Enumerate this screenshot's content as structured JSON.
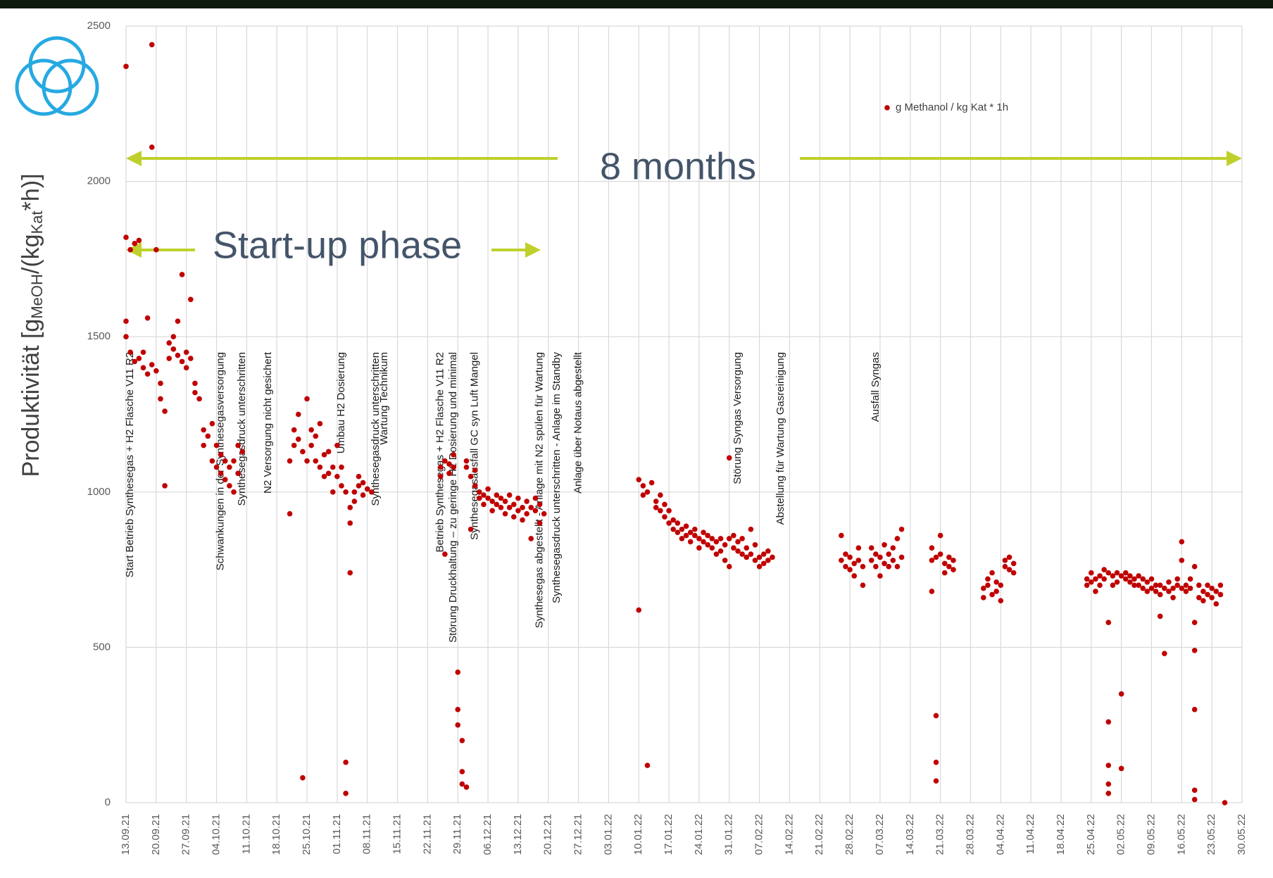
{
  "chart_data": {
    "type": "scatter",
    "y_label": [
      "Produktivität [g",
      "MeOH",
      "/(kg",
      "Kat",
      "*h)]"
    ],
    "ylim": [
      0,
      2500
    ],
    "yticks": [
      0,
      500,
      1000,
      1500,
      2000,
      2500
    ],
    "xlim": [
      "13.09.21",
      "30.05.22"
    ],
    "xticks": [
      "13.09.21",
      "20.09.21",
      "27.09.21",
      "04.10.21",
      "11.10.21",
      "18.10.21",
      "25.10.21",
      "01.11.21",
      "08.11.21",
      "15.11.21",
      "22.11.21",
      "29.11.21",
      "06.12.21",
      "13.12.21",
      "20.12.21",
      "27.12.21",
      "03.01.22",
      "10.01.22",
      "17.01.22",
      "24.01.22",
      "31.01.22",
      "07.02.22",
      "14.02.22",
      "21.02.22",
      "28.02.22",
      "07.03.22",
      "14.03.22",
      "21.03.22",
      "28.03.22",
      "04.04.22",
      "11.04.22",
      "18.04.22",
      "25.04.22",
      "02.05.22",
      "09.05.22",
      "16.05.22",
      "23.05.22",
      "30.05.22"
    ],
    "grid": true,
    "legend": "upper right",
    "arrow_labels": [
      "8 months",
      "Start-up phase"
    ],
    "annotations": [
      {
        "text": "Start Betrieb Synthesegas + H2 Flasche V11 R2",
        "x": "14.09.21"
      },
      {
        "text": "Schwankungen in der Synthesegasversorgung",
        "x": "05.10.21"
      },
      {
        "text": "Synthesegasdruck unterschritten",
        "x": "10.10.21"
      },
      {
        "text": "N2 Versorgung nicht gesichert",
        "x": "16.10.21"
      },
      {
        "text": "Umbau H2 Dosierung",
        "x": "02.11.21"
      },
      {
        "text": "Synthesegasdruck unterschritten",
        "x": "10.11.21"
      },
      {
        "text": "Wartung Technikum",
        "x": "12.11.21"
      },
      {
        "text": "Betrieb Synthesegas + H2 Flasche V11 R2",
        "x": "25.11.21"
      },
      {
        "text": "Störung Druckhaltung – zu geringe H2 Dosierung und minimal",
        "x": "28.11.21"
      },
      {
        "text": "Synthesegasausfall GC syn Luft Mangel",
        "x": "03.12.21"
      },
      {
        "text": "Synthesegas abgestellt - Anlage mit N2 spülen für Wartung",
        "x": "18.12.21"
      },
      {
        "text": "Synthesegasdruck unterschritten - Anlage im Standby",
        "x": "22.12.21"
      },
      {
        "text": "Anlage über Notaus abgestellt",
        "x": "27.12.21"
      },
      {
        "text": "Störung Syngas Versorgung",
        "x": "02.02.22"
      },
      {
        "text": "Abstellung für Wartung Gasreinigung",
        "x": "12.02.22"
      },
      {
        "text": "Ausfall Syngas",
        "x": "06.03.22"
      }
    ],
    "x": [
      "13.09.21",
      "13.09.21",
      "13.09.21",
      "13.09.21",
      "14.09.21",
      "14.09.21",
      "15.09.21",
      "15.09.21",
      "16.09.21",
      "16.09.21",
      "17.09.21",
      "17.09.21",
      "18.09.21",
      "18.09.21",
      "19.09.21",
      "19.09.21",
      "19.09.21",
      "20.09.21",
      "20.09.21",
      "21.09.21",
      "21.09.21",
      "22.09.21",
      "22.09.21",
      "23.09.21",
      "23.09.21",
      "24.09.21",
      "24.09.21",
      "25.09.21",
      "25.09.21",
      "26.09.21",
      "26.09.21",
      "27.09.21",
      "27.09.21",
      "28.09.21",
      "28.09.21",
      "29.09.21",
      "29.09.21",
      "30.09.21",
      "01.10.21",
      "01.10.21",
      "02.10.21",
      "03.10.21",
      "03.10.21",
      "04.10.21",
      "04.10.21",
      "05.10.21",
      "05.10.21",
      "06.10.21",
      "06.10.21",
      "07.10.21",
      "07.10.21",
      "08.10.21",
      "08.10.21",
      "09.10.21",
      "09.10.21",
      "10.10.21",
      "21.10.21",
      "21.10.21",
      "22.10.21",
      "22.10.21",
      "23.10.21",
      "23.10.21",
      "24.10.21",
      "24.10.21",
      "25.10.21",
      "25.10.21",
      "26.10.21",
      "26.10.21",
      "27.10.21",
      "27.10.21",
      "28.10.21",
      "28.10.21",
      "29.10.21",
      "29.10.21",
      "30.10.21",
      "30.10.21",
      "31.10.21",
      "31.10.21",
      "01.11.21",
      "01.11.21",
      "02.11.21",
      "02.11.21",
      "03.11.21",
      "03.11.21",
      "03.11.21",
      "04.11.21",
      "04.11.21",
      "04.11.21",
      "05.11.21",
      "05.11.21",
      "06.11.21",
      "06.11.21",
      "07.11.21",
      "07.11.21",
      "08.11.21",
      "09.11.21",
      "25.11.21",
      "25.11.21",
      "26.11.21",
      "26.11.21",
      "27.11.21",
      "27.11.21",
      "28.11.21",
      "28.11.21",
      "29.11.21",
      "29.11.21",
      "29.11.21",
      "30.11.21",
      "30.11.21",
      "30.11.21",
      "01.12.21",
      "01.12.21",
      "01.12.21",
      "02.12.21",
      "02.12.21",
      "03.12.21",
      "03.12.21",
      "04.12.21",
      "04.12.21",
      "05.12.21",
      "05.12.21",
      "06.12.21",
      "06.12.21",
      "07.12.21",
      "07.12.21",
      "08.12.21",
      "08.12.21",
      "09.12.21",
      "09.12.21",
      "10.12.21",
      "10.12.21",
      "11.12.21",
      "11.12.21",
      "12.12.21",
      "12.12.21",
      "13.12.21",
      "13.12.21",
      "14.12.21",
      "14.12.21",
      "15.12.21",
      "15.12.21",
      "16.12.21",
      "16.12.21",
      "17.12.21",
      "17.12.21",
      "18.12.21",
      "18.12.21",
      "19.12.21",
      "10.01.22",
      "10.01.22",
      "11.01.22",
      "11.01.22",
      "12.01.22",
      "12.01.22",
      "13.01.22",
      "14.01.22",
      "14.01.22",
      "15.01.22",
      "15.01.22",
      "16.01.22",
      "16.01.22",
      "17.01.22",
      "17.01.22",
      "18.01.22",
      "18.01.22",
      "19.01.22",
      "19.01.22",
      "20.01.22",
      "20.01.22",
      "21.01.22",
      "21.01.22",
      "22.01.22",
      "22.01.22",
      "23.01.22",
      "23.01.22",
      "24.01.22",
      "24.01.22",
      "25.01.22",
      "25.01.22",
      "26.01.22",
      "26.01.22",
      "27.01.22",
      "27.01.22",
      "28.01.22",
      "28.01.22",
      "29.01.22",
      "29.01.22",
      "30.01.22",
      "30.01.22",
      "31.01.22",
      "31.01.22",
      "31.01.22",
      "01.02.22",
      "01.02.22",
      "02.02.22",
      "02.02.22",
      "03.02.22",
      "03.02.22",
      "04.02.22",
      "04.02.22",
      "05.02.22",
      "05.02.22",
      "06.02.22",
      "06.02.22",
      "07.02.22",
      "07.02.22",
      "08.02.22",
      "08.02.22",
      "09.02.22",
      "09.02.22",
      "10.02.22",
      "26.02.22",
      "26.02.22",
      "27.02.22",
      "27.02.22",
      "28.02.22",
      "28.02.22",
      "01.03.22",
      "01.03.22",
      "02.03.22",
      "02.03.22",
      "03.03.22",
      "03.03.22",
      "05.03.22",
      "05.03.22",
      "06.03.22",
      "06.03.22",
      "07.03.22",
      "07.03.22",
      "08.03.22",
      "08.03.22",
      "09.03.22",
      "09.03.22",
      "10.03.22",
      "10.03.22",
      "11.03.22",
      "11.03.22",
      "12.03.22",
      "12.03.22",
      "19.03.22",
      "19.03.22",
      "19.03.22",
      "20.03.22",
      "20.03.22",
      "20.03.22",
      "20.03.22",
      "21.03.22",
      "21.03.22",
      "22.03.22",
      "22.03.22",
      "23.03.22",
      "23.03.22",
      "24.03.22",
      "24.03.22",
      "31.03.22",
      "31.03.22",
      "01.04.22",
      "01.04.22",
      "02.04.22",
      "02.04.22",
      "03.04.22",
      "03.04.22",
      "04.04.22",
      "04.04.22",
      "05.04.22",
      "05.04.22",
      "06.04.22",
      "06.04.22",
      "07.04.22",
      "07.04.22",
      "24.04.22",
      "24.04.22",
      "25.04.22",
      "25.04.22",
      "26.04.22",
      "26.04.22",
      "27.04.22",
      "27.04.22",
      "28.04.22",
      "28.04.22",
      "29.04.22",
      "29.04.22",
      "29.04.22",
      "29.04.22",
      "29.04.22",
      "29.04.22",
      "30.04.22",
      "30.04.22",
      "01.05.22",
      "01.05.22",
      "02.05.22",
      "02.05.22",
      "02.05.22",
      "03.05.22",
      "03.05.22",
      "04.05.22",
      "04.05.22",
      "05.05.22",
      "05.05.22",
      "06.05.22",
      "06.05.22",
      "07.05.22",
      "07.05.22",
      "08.05.22",
      "08.05.22",
      "09.05.22",
      "09.05.22",
      "10.05.22",
      "10.05.22",
      "11.05.22",
      "11.05.22",
      "11.05.22",
      "12.05.22",
      "12.05.22",
      "13.05.22",
      "13.05.22",
      "14.05.22",
      "14.05.22",
      "15.05.22",
      "15.05.22",
      "16.05.22",
      "16.05.22",
      "16.05.22",
      "17.05.22",
      "17.05.22",
      "18.05.22",
      "18.05.22",
      "19.05.22",
      "19.05.22",
      "19.05.22",
      "19.05.22",
      "19.05.22",
      "19.05.22",
      "20.05.22",
      "20.05.22",
      "21.05.22",
      "21.05.22",
      "22.05.22",
      "22.05.22",
      "23.05.22",
      "23.05.22",
      "24.05.22",
      "24.05.22",
      "25.05.22",
      "25.05.22",
      "26.05.22"
    ],
    "series": [
      {
        "name": "g Methanol / kg Kat * 1h",
        "color": "#c00000",
        "values": [
          1500,
          2370,
          1820,
          1550,
          1450,
          1780,
          1420,
          1800,
          1430,
          1810,
          1400,
          1450,
          1380,
          1560,
          1410,
          2110,
          2440,
          1390,
          1780,
          1300,
          1350,
          1260,
          1020,
          1430,
          1480,
          1460,
          1500,
          1440,
          1550,
          1420,
          1700,
          1400,
          1450,
          1430,
          1620,
          1350,
          1320,
          1300,
          1200,
          1150,
          1180,
          1100,
          1220,
          1150,
          1080,
          1060,
          1120,
          1040,
          1100,
          1080,
          1020,
          1100,
          1000,
          1150,
          1060,
          1130,
          1100,
          930,
          1150,
          1200,
          1170,
          1250,
          1130,
          80,
          1300,
          1100,
          1200,
          1150,
          1100,
          1180,
          1080,
          1220,
          1120,
          1050,
          1060,
          1130,
          1000,
          1080,
          1050,
          1150,
          1080,
          1020,
          1000,
          130,
          30,
          950,
          740,
          900,
          1000,
          970,
          1020,
          1050,
          990,
          1030,
          1010,
          1000,
          1080,
          1050,
          1100,
          800,
          1060,
          1090,
          1080,
          1120,
          420,
          300,
          250,
          200,
          100,
          60,
          1100,
          1080,
          50,
          1050,
          880,
          1070,
          1020,
          1000,
          980,
          990,
          960,
          980,
          1010,
          970,
          940,
          960,
          990,
          980,
          950,
          970,
          930,
          950,
          990,
          960,
          920,
          940,
          980,
          950,
          910,
          930,
          970,
          950,
          850,
          940,
          980,
          960,
          900,
          930,
          1040,
          620,
          1020,
          990,
          1000,
          120,
          1030,
          970,
          950,
          940,
          990,
          920,
          960,
          900,
          940,
          880,
          910,
          870,
          900,
          880,
          850,
          860,
          890,
          870,
          840,
          860,
          880,
          850,
          820,
          840,
          870,
          830,
          860,
          820,
          850,
          840,
          800,
          810,
          850,
          830,
          780,
          850,
          1110,
          760,
          820,
          860,
          810,
          840,
          800,
          850,
          790,
          820,
          800,
          880,
          780,
          830,
          790,
          760,
          800,
          770,
          780,
          810,
          790,
          780,
          860,
          760,
          800,
          750,
          790,
          770,
          730,
          780,
          820,
          760,
          700,
          780,
          820,
          760,
          800,
          790,
          730,
          770,
          830,
          800,
          760,
          780,
          820,
          760,
          850,
          790,
          880,
          780,
          820,
          680,
          790,
          280,
          130,
          70,
          800,
          860,
          770,
          740,
          790,
          760,
          750,
          780,
          690,
          660,
          700,
          720,
          670,
          740,
          710,
          680,
          700,
          650,
          780,
          760,
          790,
          750,
          770,
          740,
          720,
          700,
          710,
          740,
          720,
          680,
          700,
          730,
          720,
          750,
          740,
          580,
          260,
          120,
          60,
          30,
          730,
          700,
          740,
          710,
          730,
          350,
          110,
          720,
          740,
          710,
          730,
          720,
          700,
          700,
          730,
          690,
          720,
          710,
          680,
          690,
          720,
          680,
          700,
          670,
          700,
          600,
          690,
          480,
          680,
          710,
          690,
          660,
          700,
          720,
          840,
          780,
          690,
          700,
          680,
          690,
          720,
          760,
          580,
          490,
          300,
          40,
          10,
          700,
          660,
          680,
          650,
          670,
          700,
          660,
          690,
          680,
          640,
          670,
          700,
          0
        ]
      }
    ]
  }
}
